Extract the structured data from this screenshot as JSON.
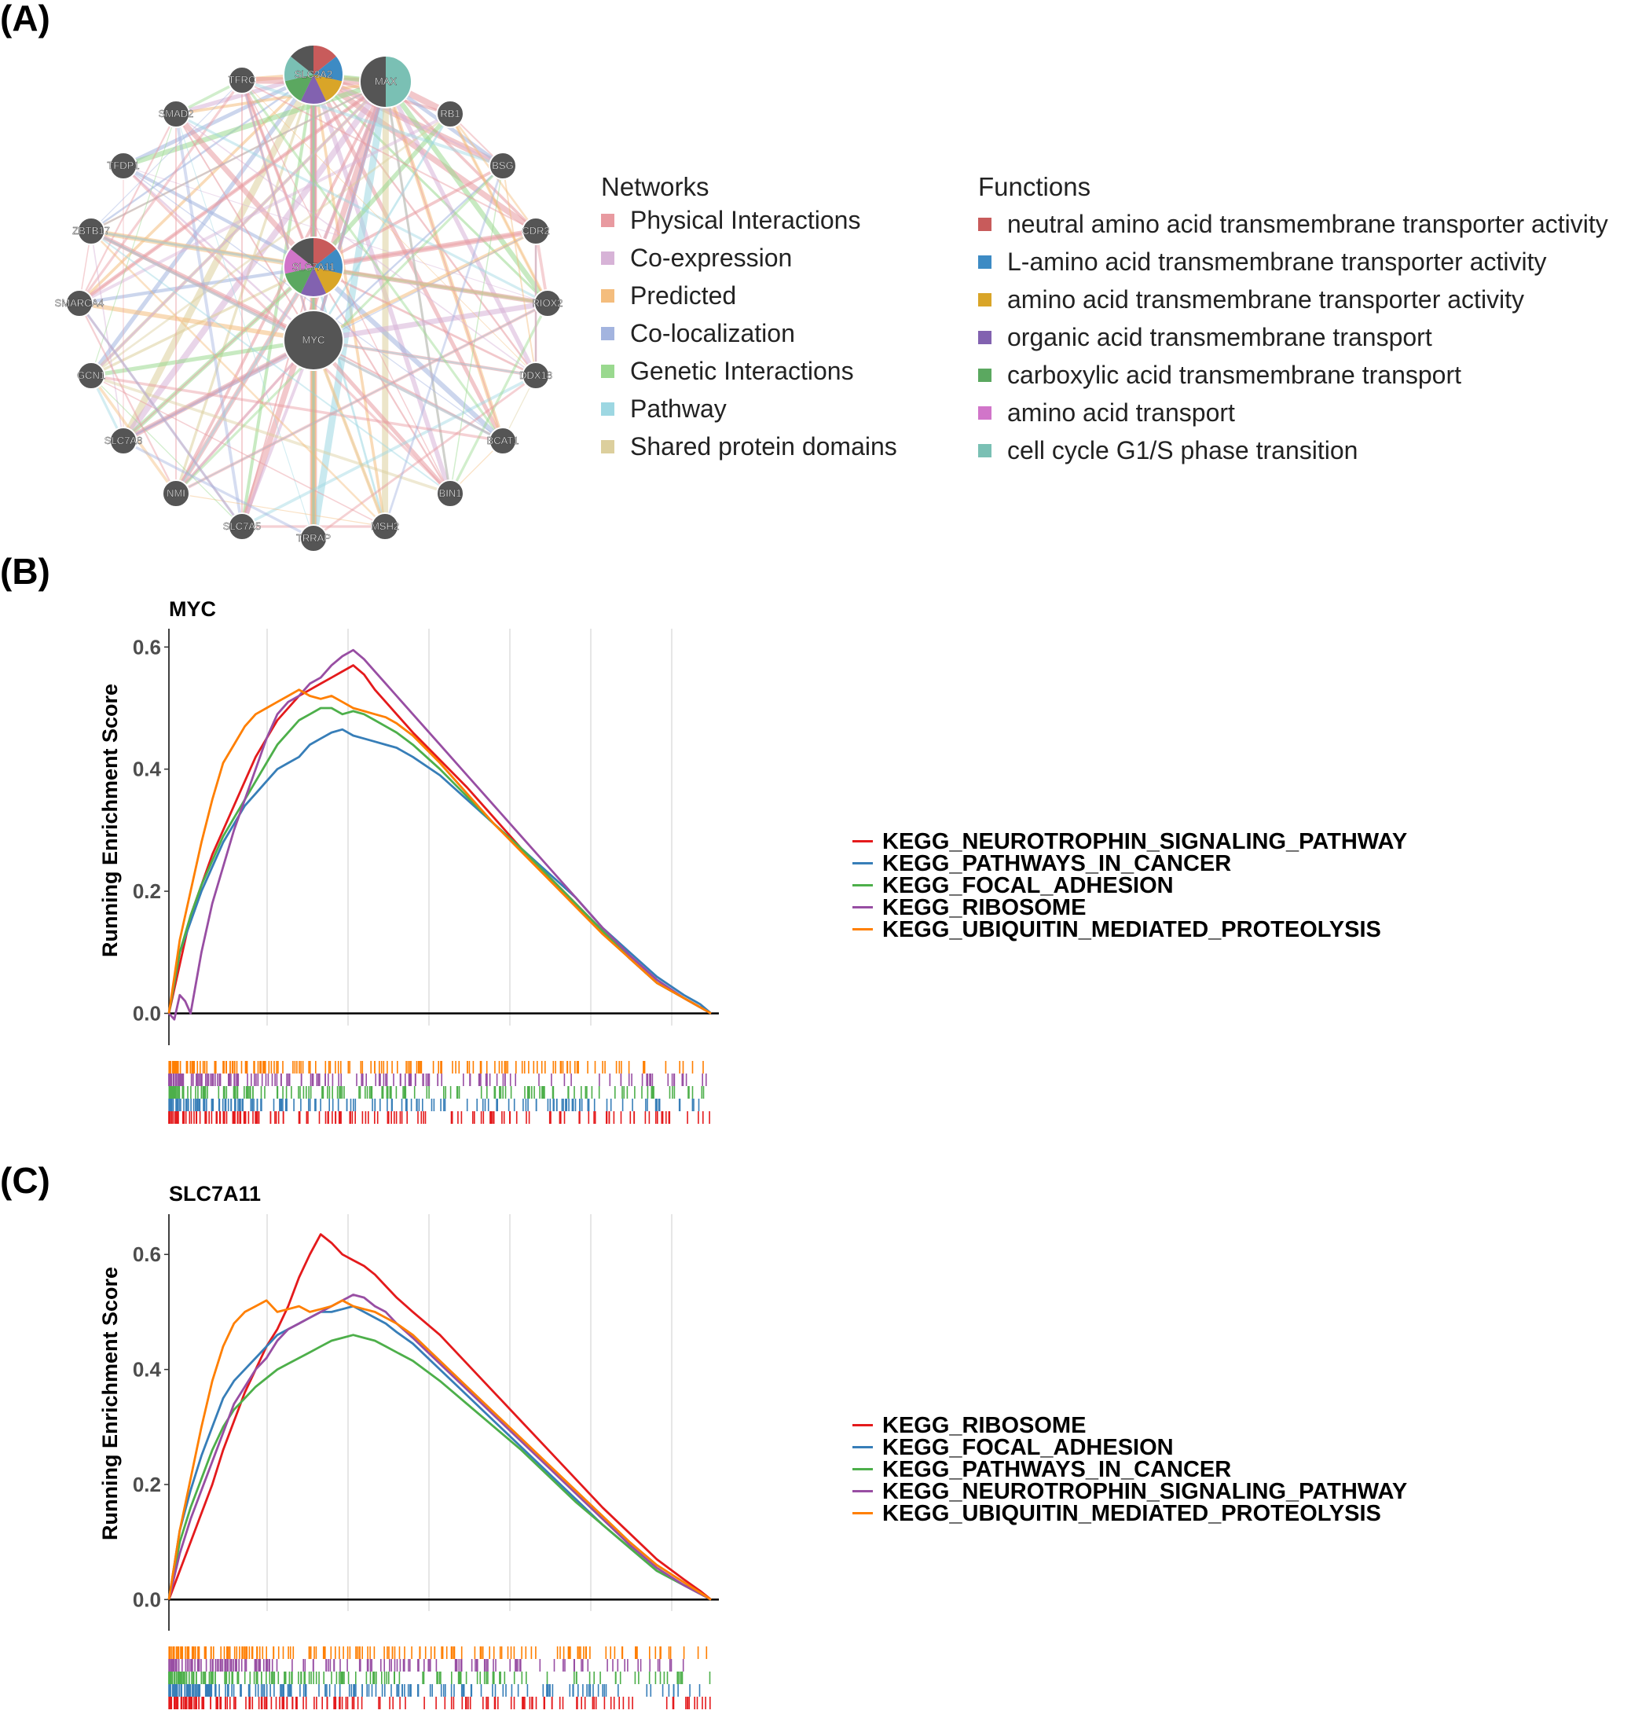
{
  "panels": {
    "a": "(A)",
    "b": "(B)",
    "c": "(C)"
  },
  "network": {
    "hubs": [
      {
        "label": "SLC3A2",
        "colors": [
          "#c85b5b",
          "#3d8bc4",
          "#d9a528",
          "#8262b0",
          "#5ba860",
          "#7ac0b4",
          "#555555"
        ]
      },
      {
        "label": "MAX",
        "colors": [
          "#7ac0b4",
          "#555555"
        ]
      },
      {
        "label": "SLC7A11",
        "colors": [
          "#c85b5b",
          "#3d8bc4",
          "#d9a528",
          "#8262b0",
          "#5ba860",
          "#d175c9",
          "#555555"
        ]
      },
      {
        "label": "MYC",
        "colors": [
          "#555555"
        ]
      }
    ],
    "nodes": [
      "TFRC",
      "RB1",
      "SMAD2",
      "BSG",
      "TFDP1",
      "CDR2",
      "ZBTB17",
      "SMARCA4",
      "RIOX2",
      "GCN1",
      "DDX18",
      "SLC7A8",
      "BCAT1",
      "NMI",
      "BIN1",
      "SLC7A5",
      "TRRAP",
      "MSH2"
    ]
  },
  "networks_legend": {
    "title": "Networks",
    "items": [
      {
        "label": "Physical Interactions",
        "color": "#e89aa0"
      },
      {
        "label": "Co-expression",
        "color": "#d7b3d7"
      },
      {
        "label": "Predicted",
        "color": "#f4bd7d"
      },
      {
        "label": "Co-localization",
        "color": "#a3b4df"
      },
      {
        "label": "Genetic Interactions",
        "color": "#9ad98f"
      },
      {
        "label": "Pathway",
        "color": "#9dd7e2"
      },
      {
        "label": "Shared protein domains",
        "color": "#dccf9d"
      }
    ]
  },
  "functions_legend": {
    "title": "Functions",
    "items": [
      {
        "label": "neutral amino acid transmembrane transporter activity",
        "color": "#c85b5b"
      },
      {
        "label": "L-amino acid transmembrane transporter activity",
        "color": "#3d8bc4"
      },
      {
        "label": "amino acid transmembrane transporter activity",
        "color": "#d9a528"
      },
      {
        "label": "organic acid transmembrane transport",
        "color": "#8262b0"
      },
      {
        "label": "carboxylic acid transmembrane transport",
        "color": "#5ba860"
      },
      {
        "label": "amino acid transport",
        "color": "#d175c9"
      },
      {
        "label": "cell cycle G1/S phase transition",
        "color": "#7ac0b4"
      }
    ]
  },
  "chart_data": [
    {
      "type": "line",
      "title": "MYC",
      "ylabel": "Running Enrichment Score",
      "xlabel": "",
      "xlim": [
        0,
        100
      ],
      "ylim": [
        -0.02,
        0.63
      ],
      "yticks": [
        0.0,
        0.2,
        0.4,
        0.6
      ],
      "ytick_labels": [
        "0.0",
        "0.2",
        "0.4",
        "0.6"
      ],
      "series": [
        {
          "name": "KEGG_NEUROTROPHIN_SIGNALING_PATHWAY",
          "color": "#e41a1c",
          "x": [
            0,
            2,
            4,
            6,
            8,
            10,
            12,
            14,
            16,
            18,
            20,
            22,
            24,
            26,
            28,
            30,
            32,
            34,
            36,
            38,
            40,
            42,
            45,
            50,
            55,
            60,
            65,
            70,
            75,
            80,
            85,
            90,
            95,
            98,
            100
          ],
          "y": [
            0.0,
            0.08,
            0.16,
            0.21,
            0.26,
            0.3,
            0.34,
            0.38,
            0.42,
            0.45,
            0.48,
            0.5,
            0.52,
            0.53,
            0.54,
            0.55,
            0.56,
            0.57,
            0.555,
            0.53,
            0.51,
            0.49,
            0.46,
            0.415,
            0.37,
            0.32,
            0.27,
            0.225,
            0.18,
            0.135,
            0.09,
            0.05,
            0.025,
            0.01,
            0.0
          ]
        },
        {
          "name": "KEGG_PATHWAYS_IN_CANCER",
          "color": "#377eb8",
          "x": [
            0,
            2,
            4,
            6,
            8,
            10,
            12,
            14,
            16,
            18,
            20,
            22,
            24,
            26,
            28,
            30,
            32,
            34,
            36,
            38,
            40,
            42,
            45,
            50,
            55,
            60,
            65,
            70,
            75,
            80,
            85,
            90,
            95,
            98,
            100
          ],
          "y": [
            0.0,
            0.1,
            0.15,
            0.2,
            0.24,
            0.28,
            0.31,
            0.34,
            0.36,
            0.38,
            0.4,
            0.41,
            0.42,
            0.44,
            0.45,
            0.46,
            0.465,
            0.455,
            0.45,
            0.445,
            0.44,
            0.435,
            0.42,
            0.39,
            0.35,
            0.31,
            0.27,
            0.23,
            0.19,
            0.14,
            0.1,
            0.06,
            0.03,
            0.015,
            0.0
          ]
        },
        {
          "name": "KEGG_FOCAL_ADHESION",
          "color": "#4daf4a",
          "x": [
            0,
            2,
            4,
            6,
            8,
            10,
            12,
            14,
            16,
            18,
            20,
            22,
            24,
            26,
            28,
            30,
            32,
            34,
            36,
            38,
            40,
            42,
            45,
            50,
            55,
            60,
            65,
            70,
            75,
            80,
            85,
            90,
            95,
            98,
            100
          ],
          "y": [
            0.0,
            0.1,
            0.16,
            0.21,
            0.25,
            0.29,
            0.32,
            0.35,
            0.38,
            0.41,
            0.44,
            0.46,
            0.48,
            0.49,
            0.5,
            0.5,
            0.49,
            0.495,
            0.49,
            0.48,
            0.47,
            0.46,
            0.44,
            0.4,
            0.355,
            0.31,
            0.27,
            0.225,
            0.18,
            0.135,
            0.09,
            0.05,
            0.025,
            0.01,
            0.0
          ]
        },
        {
          "name": "KEGG_RIBOSOME",
          "color": "#984ea3",
          "x": [
            0,
            1,
            2,
            3,
            4,
            6,
            8,
            10,
            12,
            14,
            16,
            18,
            20,
            22,
            24,
            26,
            28,
            30,
            32,
            34,
            36,
            38,
            40,
            42,
            45,
            50,
            55,
            60,
            65,
            70,
            75,
            80,
            85,
            90,
            95,
            98,
            100
          ],
          "y": [
            0.0,
            -0.01,
            0.03,
            0.02,
            0.0,
            0.1,
            0.18,
            0.24,
            0.3,
            0.35,
            0.4,
            0.45,
            0.49,
            0.51,
            0.52,
            0.54,
            0.55,
            0.57,
            0.585,
            0.595,
            0.58,
            0.56,
            0.54,
            0.52,
            0.49,
            0.44,
            0.39,
            0.34,
            0.29,
            0.24,
            0.19,
            0.14,
            0.095,
            0.055,
            0.025,
            0.01,
            0.0
          ]
        },
        {
          "name": "KEGG_UBIQUITIN_MEDIATED_PROTEOLYSIS",
          "color": "#ff7f00",
          "x": [
            0,
            2,
            4,
            6,
            8,
            10,
            12,
            14,
            16,
            18,
            20,
            22,
            24,
            26,
            28,
            30,
            32,
            34,
            36,
            38,
            40,
            42,
            45,
            50,
            55,
            60,
            65,
            70,
            75,
            80,
            85,
            90,
            95,
            98,
            100
          ],
          "y": [
            0.0,
            0.12,
            0.2,
            0.28,
            0.35,
            0.41,
            0.44,
            0.47,
            0.49,
            0.5,
            0.51,
            0.52,
            0.53,
            0.52,
            0.515,
            0.52,
            0.51,
            0.5,
            0.495,
            0.49,
            0.485,
            0.475,
            0.455,
            0.41,
            0.36,
            0.31,
            0.265,
            0.22,
            0.175,
            0.13,
            0.09,
            0.05,
            0.025,
            0.01,
            0.0
          ]
        }
      ]
    },
    {
      "type": "line",
      "title": "SLC7A11",
      "ylabel": "Running Enrichment Score",
      "xlabel": "",
      "xlim": [
        0,
        100
      ],
      "ylim": [
        -0.02,
        0.67
      ],
      "yticks": [
        0.0,
        0.2,
        0.4,
        0.6
      ],
      "ytick_labels": [
        "0.0",
        "0.2",
        "0.4",
        "0.6"
      ],
      "series": [
        {
          "name": "KEGG_RIBOSOME",
          "color": "#e41a1c",
          "x": [
            0,
            2,
            4,
            6,
            8,
            10,
            12,
            14,
            16,
            18,
            20,
            22,
            24,
            26,
            28,
            30,
            32,
            34,
            36,
            38,
            40,
            42,
            45,
            50,
            55,
            60,
            65,
            70,
            75,
            80,
            85,
            90,
            95,
            98,
            100
          ],
          "y": [
            0.0,
            0.05,
            0.1,
            0.15,
            0.2,
            0.26,
            0.31,
            0.36,
            0.4,
            0.44,
            0.47,
            0.51,
            0.56,
            0.6,
            0.635,
            0.62,
            0.6,
            0.59,
            0.58,
            0.565,
            0.545,
            0.525,
            0.5,
            0.46,
            0.41,
            0.36,
            0.31,
            0.26,
            0.21,
            0.16,
            0.115,
            0.07,
            0.035,
            0.015,
            0.0
          ]
        },
        {
          "name": "KEGG_FOCAL_ADHESION",
          "color": "#377eb8",
          "x": [
            0,
            2,
            4,
            6,
            8,
            10,
            12,
            14,
            16,
            18,
            20,
            22,
            24,
            26,
            28,
            30,
            32,
            34,
            36,
            38,
            40,
            42,
            45,
            50,
            55,
            60,
            65,
            70,
            75,
            80,
            85,
            90,
            95,
            98,
            100
          ],
          "y": [
            0.0,
            0.12,
            0.19,
            0.25,
            0.3,
            0.35,
            0.38,
            0.4,
            0.42,
            0.44,
            0.46,
            0.47,
            0.48,
            0.49,
            0.5,
            0.5,
            0.505,
            0.51,
            0.5,
            0.49,
            0.48,
            0.465,
            0.445,
            0.4,
            0.355,
            0.31,
            0.265,
            0.22,
            0.175,
            0.13,
            0.09,
            0.05,
            0.025,
            0.01,
            0.0
          ]
        },
        {
          "name": "KEGG_PATHWAYS_IN_CANCER",
          "color": "#4daf4a",
          "x": [
            0,
            2,
            4,
            6,
            8,
            10,
            12,
            14,
            16,
            18,
            20,
            22,
            24,
            26,
            28,
            30,
            32,
            34,
            36,
            38,
            40,
            42,
            45,
            50,
            55,
            60,
            65,
            70,
            75,
            80,
            85,
            90,
            95,
            98,
            100
          ],
          "y": [
            0.0,
            0.1,
            0.16,
            0.21,
            0.26,
            0.3,
            0.33,
            0.35,
            0.37,
            0.385,
            0.4,
            0.41,
            0.42,
            0.43,
            0.44,
            0.45,
            0.455,
            0.46,
            0.455,
            0.45,
            0.44,
            0.43,
            0.415,
            0.38,
            0.34,
            0.3,
            0.26,
            0.215,
            0.17,
            0.13,
            0.09,
            0.05,
            0.025,
            0.01,
            0.0
          ]
        },
        {
          "name": "KEGG_NEUROTROPHIN_SIGNALING_PATHWAY",
          "color": "#984ea3",
          "x": [
            0,
            2,
            4,
            6,
            8,
            10,
            12,
            14,
            16,
            18,
            20,
            22,
            24,
            26,
            28,
            30,
            32,
            34,
            36,
            38,
            40,
            42,
            45,
            50,
            55,
            60,
            65,
            70,
            75,
            80,
            85,
            90,
            95,
            98,
            100
          ],
          "y": [
            0.0,
            0.08,
            0.14,
            0.19,
            0.24,
            0.29,
            0.34,
            0.37,
            0.4,
            0.42,
            0.45,
            0.47,
            0.48,
            0.49,
            0.5,
            0.51,
            0.52,
            0.53,
            0.525,
            0.51,
            0.5,
            0.48,
            0.455,
            0.41,
            0.365,
            0.32,
            0.275,
            0.23,
            0.185,
            0.14,
            0.095,
            0.055,
            0.025,
            0.01,
            0.0
          ]
        },
        {
          "name": "KEGG_UBIQUITIN_MEDIATED_PROTEOLYSIS",
          "color": "#ff7f00",
          "x": [
            0,
            2,
            4,
            6,
            8,
            10,
            12,
            14,
            16,
            18,
            20,
            22,
            24,
            26,
            28,
            30,
            32,
            34,
            36,
            38,
            40,
            42,
            45,
            50,
            55,
            60,
            65,
            70,
            75,
            80,
            85,
            90,
            95,
            98,
            100
          ],
          "y": [
            0.0,
            0.12,
            0.21,
            0.3,
            0.38,
            0.44,
            0.48,
            0.5,
            0.51,
            0.52,
            0.5,
            0.505,
            0.51,
            0.5,
            0.505,
            0.51,
            0.52,
            0.51,
            0.505,
            0.5,
            0.49,
            0.48,
            0.46,
            0.415,
            0.37,
            0.325,
            0.28,
            0.235,
            0.19,
            0.145,
            0.1,
            0.06,
            0.03,
            0.012,
            0.0
          ]
        }
      ]
    }
  ]
}
